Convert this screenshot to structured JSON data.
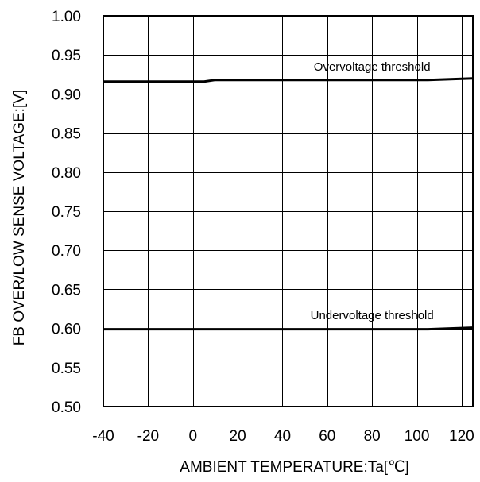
{
  "chart_data": {
    "type": "line",
    "title": "",
    "xlabel": "AMBIENT TEMPERATURE:Ta[℃]",
    "ylabel": "FB OVER/LOW SENSE VOLTAGE:[V]",
    "xlim": [
      -40,
      125
    ],
    "ylim": [
      0.5,
      1.0
    ],
    "grid": true,
    "x_ticks": [
      "-40",
      "-20",
      "0",
      "20",
      "40",
      "60",
      "80",
      "100",
      "120"
    ],
    "x_tick_values": [
      -40,
      -20,
      0,
      20,
      40,
      60,
      80,
      100,
      120
    ],
    "y_ticks": [
      "0.50",
      "0.55",
      "0.60",
      "0.65",
      "0.70",
      "0.75",
      "0.80",
      "0.85",
      "0.90",
      "0.95",
      "1.00"
    ],
    "y_tick_values": [
      0.5,
      0.55,
      0.6,
      0.65,
      0.7,
      0.75,
      0.8,
      0.85,
      0.9,
      0.95,
      1.0
    ],
    "series": [
      {
        "name": "Overvoltage threshold",
        "x": [
          -40,
          5,
          10,
          60,
          105,
          125
        ],
        "y": [
          0.916,
          0.916,
          0.918,
          0.918,
          0.918,
          0.92
        ]
      },
      {
        "name": "Undervoltage threshold",
        "x": [
          -40,
          60,
          105,
          125
        ],
        "y": [
          0.599,
          0.599,
          0.599,
          0.601
        ]
      }
    ],
    "annotations": [
      {
        "text": "Overvoltage threshold",
        "x": 80,
        "y": 0.93
      },
      {
        "text": "Undervoltage threshold",
        "x": 80,
        "y": 0.612
      }
    ]
  }
}
